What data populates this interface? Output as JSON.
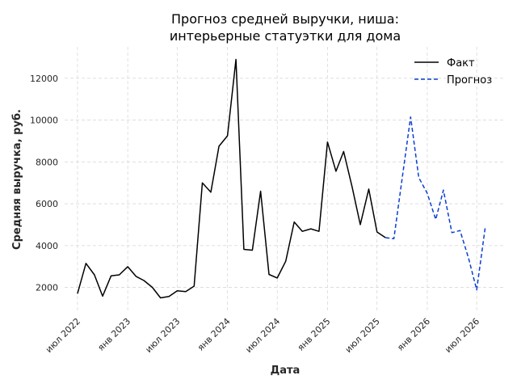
{
  "chart_data": {
    "type": "line",
    "title_line1": "Прогноз средней выручки, ниша:",
    "title_line2": "интерьерные статуэтки для дома",
    "xlabel": "Дата",
    "ylabel": "Средняя выручка, руб.",
    "grid": true,
    "legend_position": "top-right",
    "x_ticks": [
      "2022-07-01",
      "2023-01-01",
      "2023-07-01",
      "2024-01-01",
      "2024-07-01",
      "2025-01-01",
      "2025-07-01",
      "2026-01-01",
      "2026-07-01"
    ],
    "x_tick_labels": [
      "июл 2022",
      "янв 2023",
      "июл 2023",
      "янв 2024",
      "июл 2024",
      "янв 2025",
      "июл 2025",
      "янв 2026",
      "июл 2026"
    ],
    "y_ticks": [
      2000,
      4000,
      6000,
      8000,
      10000,
      12000
    ],
    "y_tick_labels": [
      "2000",
      "4000",
      "6000",
      "8000",
      "10000",
      "12000"
    ],
    "xlim": [
      "2022-05-15",
      "2026-10-15"
    ],
    "ylim": [
      900,
      13500
    ],
    "series": [
      {
        "name": "Факт",
        "color": "#000000",
        "style": "solid",
        "x": [
          "2022-07-01",
          "2022-08-01",
          "2022-09-01",
          "2022-10-01",
          "2022-11-01",
          "2022-12-01",
          "2023-01-01",
          "2023-02-01",
          "2023-03-01",
          "2023-04-01",
          "2023-05-01",
          "2023-06-01",
          "2023-07-01",
          "2023-08-01",
          "2023-09-01",
          "2023-10-01",
          "2023-11-01",
          "2023-12-01",
          "2024-01-01",
          "2024-02-01",
          "2024-03-01",
          "2024-04-01",
          "2024-05-01",
          "2024-06-01",
          "2024-07-01",
          "2024-08-01",
          "2024-09-01",
          "2024-10-01",
          "2024-11-01",
          "2024-12-01",
          "2025-01-01",
          "2025-02-01",
          "2025-03-01",
          "2025-04-01",
          "2025-05-01",
          "2025-06-01",
          "2025-07-01",
          "2025-08-01"
        ],
        "y": [
          1700,
          3150,
          2600,
          1580,
          2550,
          2600,
          2990,
          2520,
          2330,
          2000,
          1500,
          1570,
          1840,
          1800,
          2060,
          7000,
          6550,
          8750,
          9250,
          12900,
          3820,
          3780,
          6600,
          2620,
          2450,
          3250,
          5130,
          4680,
          4800,
          4680,
          8950,
          7550,
          8500,
          6800,
          5000,
          6700,
          4650,
          4380
        ]
      },
      {
        "name": "Прогноз",
        "color": "#0a3fd1",
        "style": "dashed",
        "x": [
          "2025-08-01",
          "2025-09-01",
          "2025-10-01",
          "2025-11-01",
          "2025-12-01",
          "2026-01-01",
          "2026-02-01",
          "2026-03-01",
          "2026-04-01",
          "2026-05-01",
          "2026-06-01",
          "2026-07-01",
          "2026-08-01"
        ],
        "y": [
          4380,
          4330,
          7200,
          10150,
          7250,
          6500,
          5250,
          6650,
          4620,
          4720,
          3400,
          1880,
          4850
        ]
      }
    ]
  }
}
